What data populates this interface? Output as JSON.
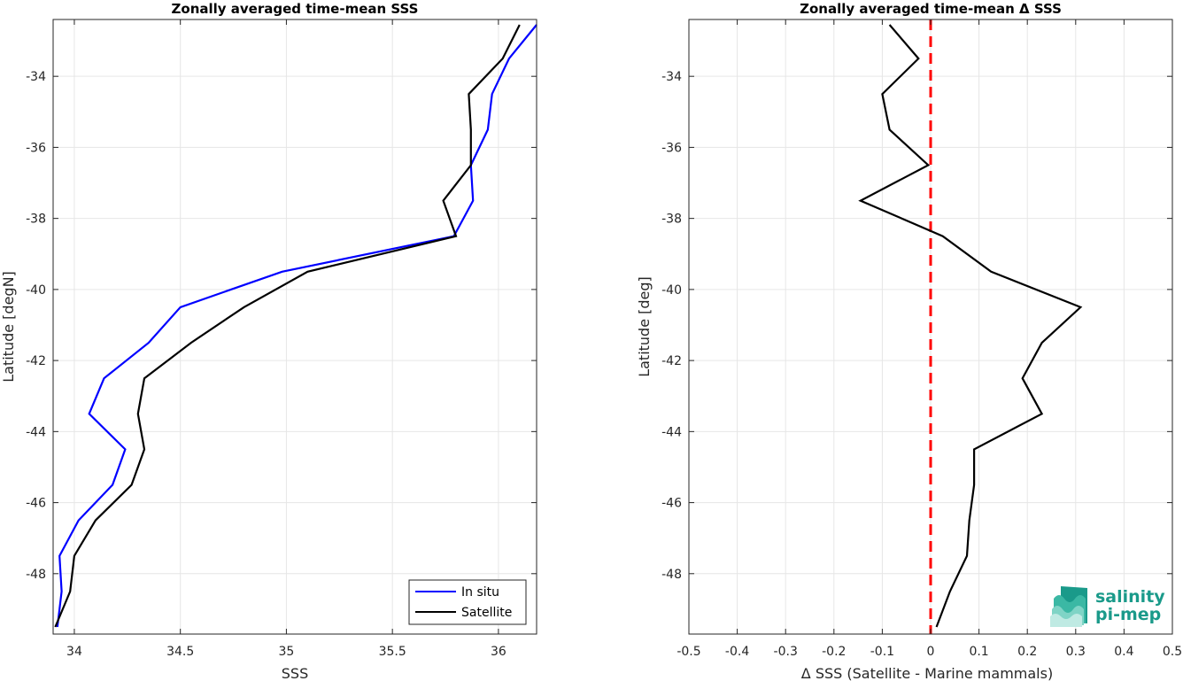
{
  "chart_data": [
    {
      "type": "line",
      "title": "Zonally averaged time-mean SSS",
      "xlabel": "SSS",
      "ylabel": "Latitude [degN]",
      "xlim": [
        33.9,
        36.18
      ],
      "ylim": [
        -49.7,
        -32.4
      ],
      "xticks": [
        34,
        34.5,
        35,
        35.5,
        36
      ],
      "xtick_labels": [
        "34",
        "34.5",
        "35",
        "35.5",
        "36"
      ],
      "yticks": [
        -34,
        -36,
        -38,
        -40,
        -42,
        -44,
        -46,
        -48
      ],
      "ytick_labels": [
        "-34",
        "-36",
        "-38",
        "-40",
        "-42",
        "-44",
        "-46",
        "-48"
      ],
      "grid": true,
      "legend_position": "bottom-right",
      "series": [
        {
          "name": "In situ",
          "color": "#0000ff",
          "x": [
            36.18,
            36.05,
            35.97,
            35.95,
            35.87,
            35.88,
            35.79,
            34.98,
            34.5,
            34.35,
            34.14,
            34.07,
            34.24,
            34.18,
            34.02,
            33.93,
            33.94,
            33.92
          ],
          "y": [
            -32.55,
            -33.5,
            -34.5,
            -35.5,
            -36.5,
            -37.5,
            -38.5,
            -39.5,
            -40.5,
            -41.5,
            -42.5,
            -43.5,
            -44.5,
            -45.5,
            -46.5,
            -47.5,
            -48.5,
            -49.5
          ]
        },
        {
          "name": "Satellite",
          "color": "#000000",
          "x": [
            36.1,
            36.02,
            35.86,
            35.87,
            35.87,
            35.74,
            35.8,
            35.1,
            34.8,
            34.55,
            34.33,
            34.3,
            34.33,
            34.27,
            34.1,
            34.0,
            33.98,
            33.91
          ],
          "y": [
            -32.55,
            -33.5,
            -34.5,
            -35.5,
            -36.5,
            -37.5,
            -38.5,
            -39.5,
            -40.5,
            -41.5,
            -42.5,
            -43.5,
            -44.5,
            -45.5,
            -46.5,
            -47.5,
            -48.5,
            -49.5
          ]
        }
      ]
    },
    {
      "type": "line",
      "title": "Zonally averaged time-mean Δ SSS",
      "xlabel": "Δ SSS (Satellite - Marine mammals)",
      "ylabel": "Latitude [deg]",
      "xlim": [
        -0.5,
        0.5
      ],
      "ylim": [
        -49.7,
        -32.4
      ],
      "xticks": [
        -0.5,
        -0.4,
        -0.3,
        -0.2,
        -0.1,
        0,
        0.1,
        0.2,
        0.3,
        0.4,
        0.5
      ],
      "xtick_labels": [
        "-0.5",
        "-0.4",
        "-0.3",
        "-0.2",
        "-0.1",
        "0",
        "0.1",
        "0.2",
        "0.3",
        "0.4",
        "0.5"
      ],
      "yticks": [
        -34,
        -36,
        -38,
        -40,
        -42,
        -44,
        -46,
        -48
      ],
      "ytick_labels": [
        "-34",
        "-36",
        "-38",
        "-40",
        "-42",
        "-44",
        "-46",
        "-48"
      ],
      "grid": true,
      "reference_line": {
        "x": 0,
        "color": "#ff0000",
        "style": "dashed"
      },
      "series": [
        {
          "color": "#000000",
          "x": [
            -0.085,
            -0.025,
            -0.1,
            -0.085,
            -0.005,
            -0.145,
            0.025,
            0.125,
            0.31,
            0.23,
            0.19,
            0.23,
            0.09,
            0.09,
            0.08,
            0.075,
            0.04,
            0.012
          ],
          "y": [
            -32.55,
            -33.5,
            -34.5,
            -35.5,
            -36.5,
            -37.5,
            -38.5,
            -39.5,
            -40.5,
            -41.5,
            -42.5,
            -43.5,
            -44.5,
            -45.5,
            -46.5,
            -47.5,
            -48.5,
            -49.5
          ]
        }
      ]
    }
  ],
  "logo": {
    "line1": "salinity",
    "line2": "pi-mep"
  }
}
